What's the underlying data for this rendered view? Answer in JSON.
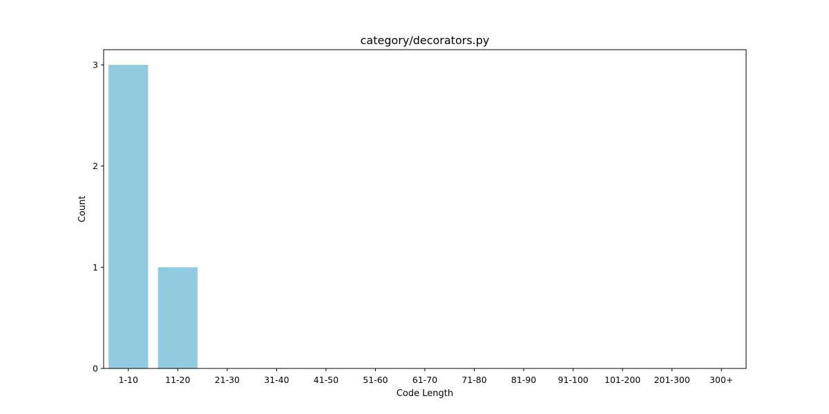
{
  "chart_data": {
    "type": "bar",
    "title": "category/decorators.py",
    "xlabel": "Code Length",
    "ylabel": "Count",
    "categories": [
      "1-10",
      "11-20",
      "21-30",
      "31-40",
      "41-50",
      "51-60",
      "61-70",
      "71-80",
      "81-90",
      "91-100",
      "101-200",
      "201-300",
      "300+"
    ],
    "values": [
      3,
      1,
      0,
      0,
      0,
      0,
      0,
      0,
      0,
      0,
      0,
      0,
      0
    ],
    "ylim": [
      0,
      3.15
    ],
    "yticks": [
      0,
      1,
      2,
      3
    ],
    "grid": false,
    "legend": "none",
    "bar_color": "#92cadf"
  }
}
